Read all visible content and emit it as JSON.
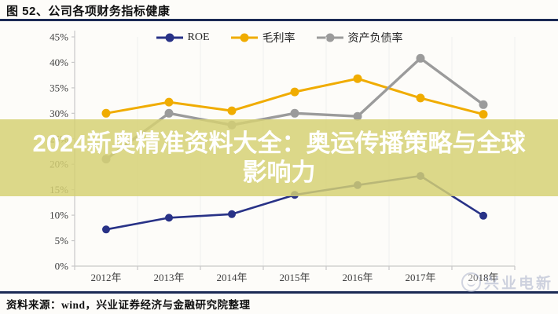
{
  "header": {
    "title": "图 52、公司各项财务指标健康"
  },
  "banner": {
    "line1": "2024新奥精准资料大全：奥运传播策略与全球",
    "line2": "影响力",
    "bg_color": "#d5d073",
    "text_color": "#ffffff"
  },
  "footer": {
    "source": "资料来源：wind，兴业证券经济与金融研究院整理"
  },
  "watermark": {
    "label": "兴业电新",
    "icon": "circle-face-logo"
  },
  "colors": {
    "rule": "#1b2a55",
    "axis": "#c8c8c8",
    "grid": "#f0f0ee",
    "tick_text": "#3f3f3f"
  },
  "chart_data": {
    "type": "line",
    "title": "",
    "categories": [
      "2012年",
      "2013年",
      "2014年",
      "2015年",
      "2016年",
      "2017年",
      "2018年"
    ],
    "series": [
      {
        "name": "ROE",
        "color": "#283287",
        "values": [
          7.2,
          9.5,
          10.2,
          14.0,
          15.9,
          17.7,
          9.9
        ]
      },
      {
        "name": "毛利率",
        "color": "#f0ac00",
        "values": [
          30.0,
          32.2,
          30.5,
          34.2,
          36.8,
          33.0,
          29.8
        ]
      },
      {
        "name": "资产负债率",
        "color": "#9b9b9b",
        "values": [
          21.0,
          30.0,
          27.7,
          30.0,
          29.4,
          40.8,
          31.7
        ]
      }
    ],
    "ylim": [
      0,
      45
    ],
    "ytick_step": 5,
    "ytick_format": "percent",
    "xlabel": "",
    "ylabel": "",
    "legend_position": "top",
    "grid": false
  }
}
